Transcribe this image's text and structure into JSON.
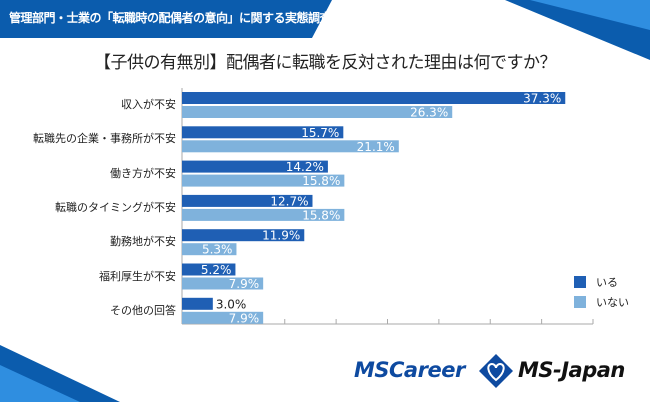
{
  "header": {
    "text": "管理部門・士業の「転職時の配偶者の意向」に関する実態調査"
  },
  "colors": {
    "header": "#0b5cad",
    "series1": "#1f5fb4",
    "series2": "#7fb2dc",
    "brand_blue": "#0e4aa0"
  },
  "chart_data": {
    "type": "bar",
    "orientation": "horizontal",
    "title": "【子供の有無別】配偶者に転職を反対された理由は何ですか？",
    "categories": [
      "収入が不安",
      "転職先の企業・事務所が不安",
      "働き方が不安",
      "転職のタイミングが不安",
      "勤務地が不安",
      "福利厚生が不安",
      "その他の回答"
    ],
    "series": [
      {
        "name": "いる",
        "color": "#1f5fb4",
        "values": [
          37.3,
          15.7,
          14.2,
          12.7,
          11.9,
          5.2,
          3.0
        ],
        "labels": [
          "37.3%",
          "15.7%",
          "14.2%",
          "12.7%",
          "11.9%",
          "5.2%",
          "3.0%"
        ]
      },
      {
        "name": "いない",
        "color": "#7fb2dc",
        "values": [
          26.3,
          21.1,
          15.8,
          15.8,
          5.3,
          7.9,
          7.9
        ],
        "labels": [
          "26.3%",
          "21.1%",
          "15.8%",
          "15.8%",
          "5.3%",
          "7.9%",
          "7.9%"
        ]
      }
    ],
    "xlim": [
      0,
      40
    ],
    "xtick_step": 5,
    "tick_labels_shown": false,
    "grid": false,
    "legend": "right"
  },
  "logos": {
    "left": "MSCareer",
    "right": "MS-Japan"
  }
}
